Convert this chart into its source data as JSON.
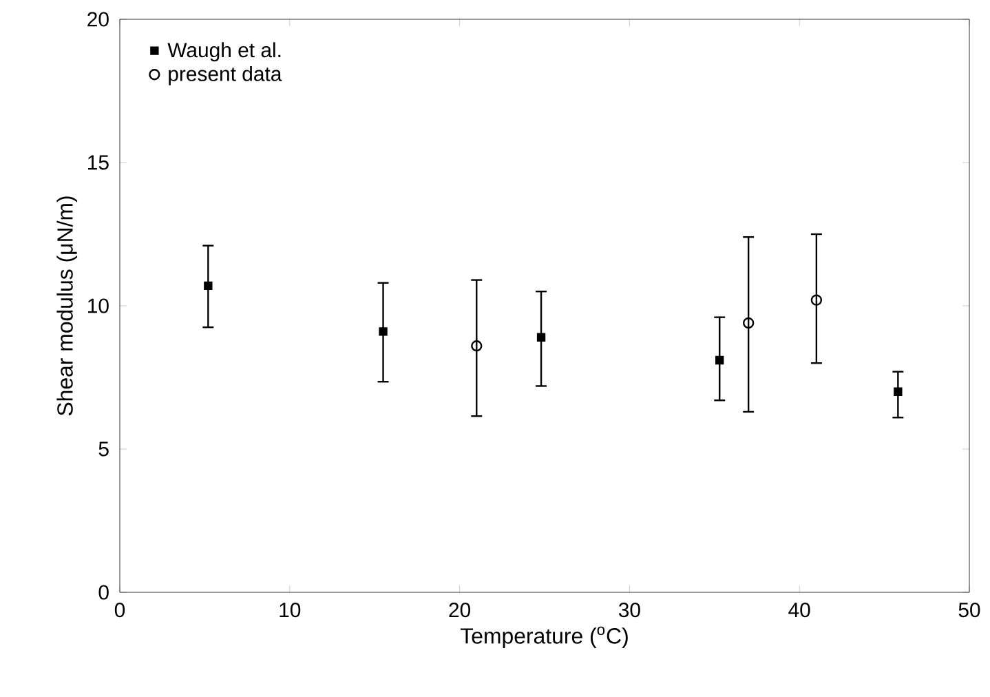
{
  "chart_data": {
    "type": "scatter",
    "xlabel": "Temperature ($^{o}$C)",
    "ylabel": "Shear modulus (μN/m)",
    "xlim": [
      0,
      50
    ],
    "xticks": [
      0,
      10,
      20,
      30,
      40,
      50
    ],
    "ylim": [
      0,
      20
    ],
    "yticks": [
      0,
      5,
      10,
      15,
      20
    ],
    "legend": "top left",
    "grid": false,
    "series": [
      {
        "name": "Waugh et al.",
        "color": "#000000",
        "marker": "square",
        "x": [
          5.2,
          15.5,
          24.8,
          35.3,
          45.8
        ],
        "values": [
          10.7,
          9.1,
          8.9,
          8.1,
          7.0
        ],
        "errors": [
          [
            9.25,
            12.1
          ],
          [
            7.35,
            10.8
          ],
          [
            7.2,
            10.5
          ],
          [
            6.7,
            9.6
          ],
          [
            6.1,
            7.7
          ]
        ]
      },
      {
        "name": "present data",
        "color": "#000000",
        "marker": "circle",
        "x": [
          21.0,
          37.0,
          41.0
        ],
        "values": [
          8.6,
          9.4,
          10.2
        ],
        "errors": [
          [
            6.15,
            10.9
          ],
          [
            6.3,
            12.4
          ],
          [
            8.0,
            12.5
          ]
        ]
      }
    ]
  }
}
